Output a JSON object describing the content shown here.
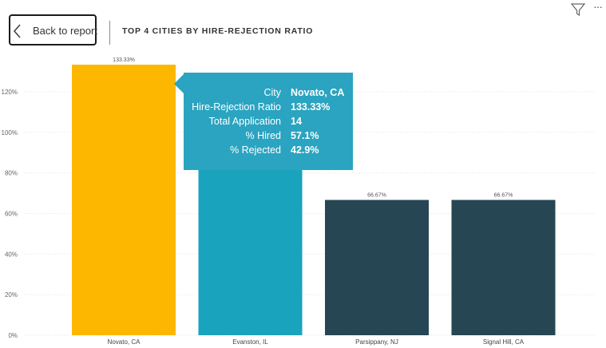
{
  "header": {
    "back_label": "Back to report",
    "title": "TOP 4 CITIES BY HIRE-REJECTION RATIO"
  },
  "icons": {
    "back": "chevron-left-icon",
    "filter": "filter-icon",
    "more": "more-options-icon",
    "more_glyph": "···"
  },
  "chart_data": {
    "type": "bar",
    "categories": [
      "Novato, CA",
      "Evanston, IL",
      "Parsippany, NJ",
      "Signal Hill, CA"
    ],
    "values": [
      133.33,
      88,
      66.67,
      66.67
    ],
    "data_labels": [
      "133.33%",
      "",
      "66.67%",
      "66.67%"
    ],
    "colors": [
      "#fdb700",
      "#1aa3bd",
      "#264653",
      "#264653"
    ],
    "ylim": [
      0,
      130
    ],
    "yticks": [
      0,
      20,
      40,
      60,
      80,
      100,
      120
    ],
    "ytick_labels": [
      "0%",
      "20%",
      "40%",
      "60%",
      "80%",
      "100%",
      "120%"
    ],
    "grid": true,
    "title": "TOP 4 CITIES BY HIRE-REJECTION RATIO",
    "xlabel": "",
    "ylabel": ""
  },
  "tooltip": {
    "color": "#2aa4c0",
    "rows": [
      {
        "label": "City",
        "value": "Novato, CA"
      },
      {
        "label": "Hire-Rejection Ratio",
        "value": "133.33%"
      },
      {
        "label": "Total Application",
        "value": "14"
      },
      {
        "label": "% Hired",
        "value": "57.1%"
      },
      {
        "label": "% Rejected",
        "value": "42.9%"
      }
    ]
  }
}
